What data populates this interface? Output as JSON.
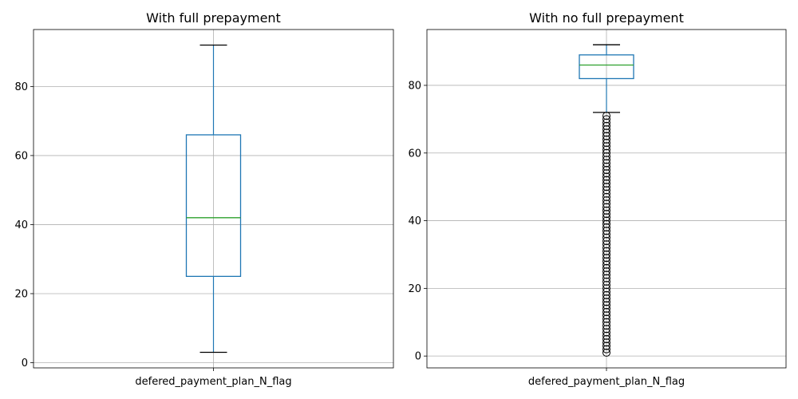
{
  "chart_data": [
    {
      "type": "box",
      "title": "With full prepayment",
      "categories": [
        "defered_payment_plan_N_flag"
      ],
      "ylim": [
        -1.5,
        96.5
      ],
      "yticks": [
        0,
        20,
        40,
        60,
        80
      ],
      "grid": true,
      "box": {
        "whisker_low": 3,
        "q1": 25,
        "median": 42,
        "q3": 66,
        "whisker_high": 92
      },
      "outliers": []
    },
    {
      "type": "box",
      "title": "With no full prepayment",
      "categories": [
        "defered_payment_plan_N_flag"
      ],
      "ylim": [
        -3.5,
        96.5
      ],
      "yticks": [
        0,
        20,
        40,
        60,
        80
      ],
      "grid": true,
      "box": {
        "whisker_low": 72,
        "q1": 82,
        "median": 86,
        "q3": 89,
        "whisker_high": 92
      },
      "outliers": [
        1,
        2,
        3,
        4,
        5,
        6,
        7,
        8,
        9,
        10,
        11,
        12,
        13,
        14,
        15,
        16,
        17,
        18,
        19,
        20,
        21,
        22,
        23,
        24,
        25,
        26,
        27,
        28,
        29,
        30,
        31,
        32,
        33,
        34,
        35,
        36,
        37,
        38,
        39,
        40,
        41,
        42,
        43,
        44,
        45,
        46,
        47,
        48,
        49,
        50,
        51,
        52,
        53,
        54,
        55,
        56,
        57,
        58,
        59,
        60,
        61,
        62,
        63,
        64,
        65,
        66,
        67,
        68,
        69,
        70,
        71
      ]
    }
  ],
  "colors": {
    "box": "#1f77b4",
    "median": "#2ca02c",
    "whisker_cap": "#000000",
    "grid": "#b0b0b0",
    "axes": "#000000"
  }
}
